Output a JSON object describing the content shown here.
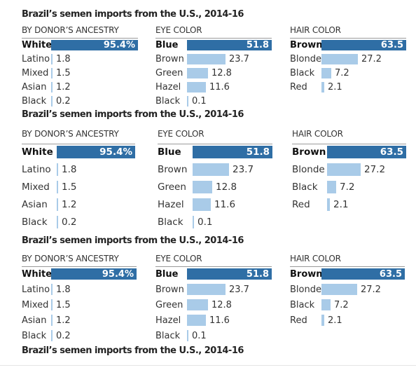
{
  "title": "Brazil’s semen imports from the U.S., 2014-16",
  "colors": {
    "top_bar": "#2f6ea5",
    "other_bar": "#a9cbe8"
  },
  "chart_data": [
    {
      "type": "bar",
      "title": "BY DONOR’S ANCESTRY",
      "categories": [
        "White",
        "Latino",
        "Mixed",
        "Asian",
        "Black"
      ],
      "values": [
        95.4,
        1.8,
        1.5,
        1.2,
        0.2
      ],
      "labels": [
        "95.4%",
        "1.8",
        "1.5",
        "1.2",
        "0.2"
      ],
      "unit": "%"
    },
    {
      "type": "bar",
      "title": "EYE COLOR",
      "categories": [
        "Blue",
        "Brown",
        "Green",
        "Hazel",
        "Black"
      ],
      "values": [
        51.8,
        23.7,
        12.8,
        11.6,
        0.1
      ],
      "labels": [
        "51.8",
        "23.7",
        "12.8",
        "11.6",
        "0.1"
      ],
      "unit": "%"
    },
    {
      "type": "bar",
      "title": "HAIR COLOR",
      "categories": [
        "Brown",
        "Blonde",
        "Black",
        "Red"
      ],
      "values": [
        63.5,
        27.2,
        7.2,
        2.1
      ],
      "labels": [
        "63.5",
        "27.2",
        "7.2",
        "2.1"
      ],
      "unit": "%"
    }
  ]
}
